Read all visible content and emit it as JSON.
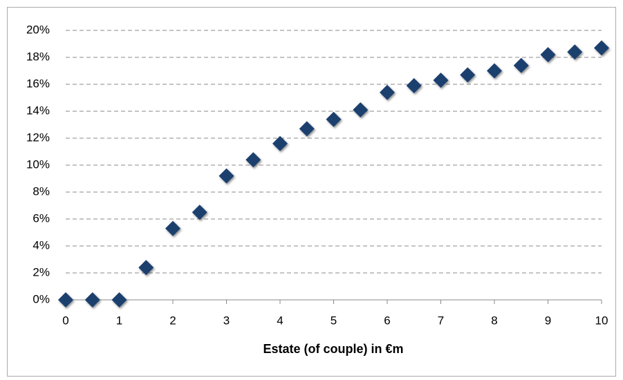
{
  "chart_data": {
    "type": "scatter",
    "x_label": "Estate (of couple) in €m",
    "x": [
      0,
      0.5,
      1,
      1.5,
      2,
      2.5,
      3,
      3.5,
      4,
      4.5,
      5,
      5.5,
      6,
      6.5,
      7,
      7.5,
      8,
      8.5,
      9,
      9.5,
      10
    ],
    "values": [
      0,
      0,
      0,
      2.4,
      5.3,
      6.5,
      9.2,
      10.4,
      11.6,
      12.7,
      13.4,
      14.1,
      15.4,
      15.9,
      16.3,
      16.7,
      17.0,
      17.4,
      18.2,
      18.4,
      18.7
    ],
    "color": "#1f3f6e",
    "xlim": [
      0,
      10
    ],
    "xticks": [
      0,
      1,
      2,
      3,
      4,
      5,
      6,
      7,
      8,
      9,
      10
    ],
    "ylim": [
      0,
      20
    ],
    "yticks": [
      {
        "value": 0,
        "label": "0%"
      },
      {
        "value": 2,
        "label": "2%"
      },
      {
        "value": 4,
        "label": "4%"
      },
      {
        "value": 6,
        "label": "6%"
      },
      {
        "value": 8,
        "label": "8%"
      },
      {
        "value": 10,
        "label": "10%"
      },
      {
        "value": 12,
        "label": "12%"
      },
      {
        "value": 14,
        "label": "14%"
      },
      {
        "value": 16,
        "label": "16%"
      },
      {
        "value": 18,
        "label": "18%"
      },
      {
        "value": 20,
        "label": "20%"
      }
    ],
    "grid": true
  }
}
